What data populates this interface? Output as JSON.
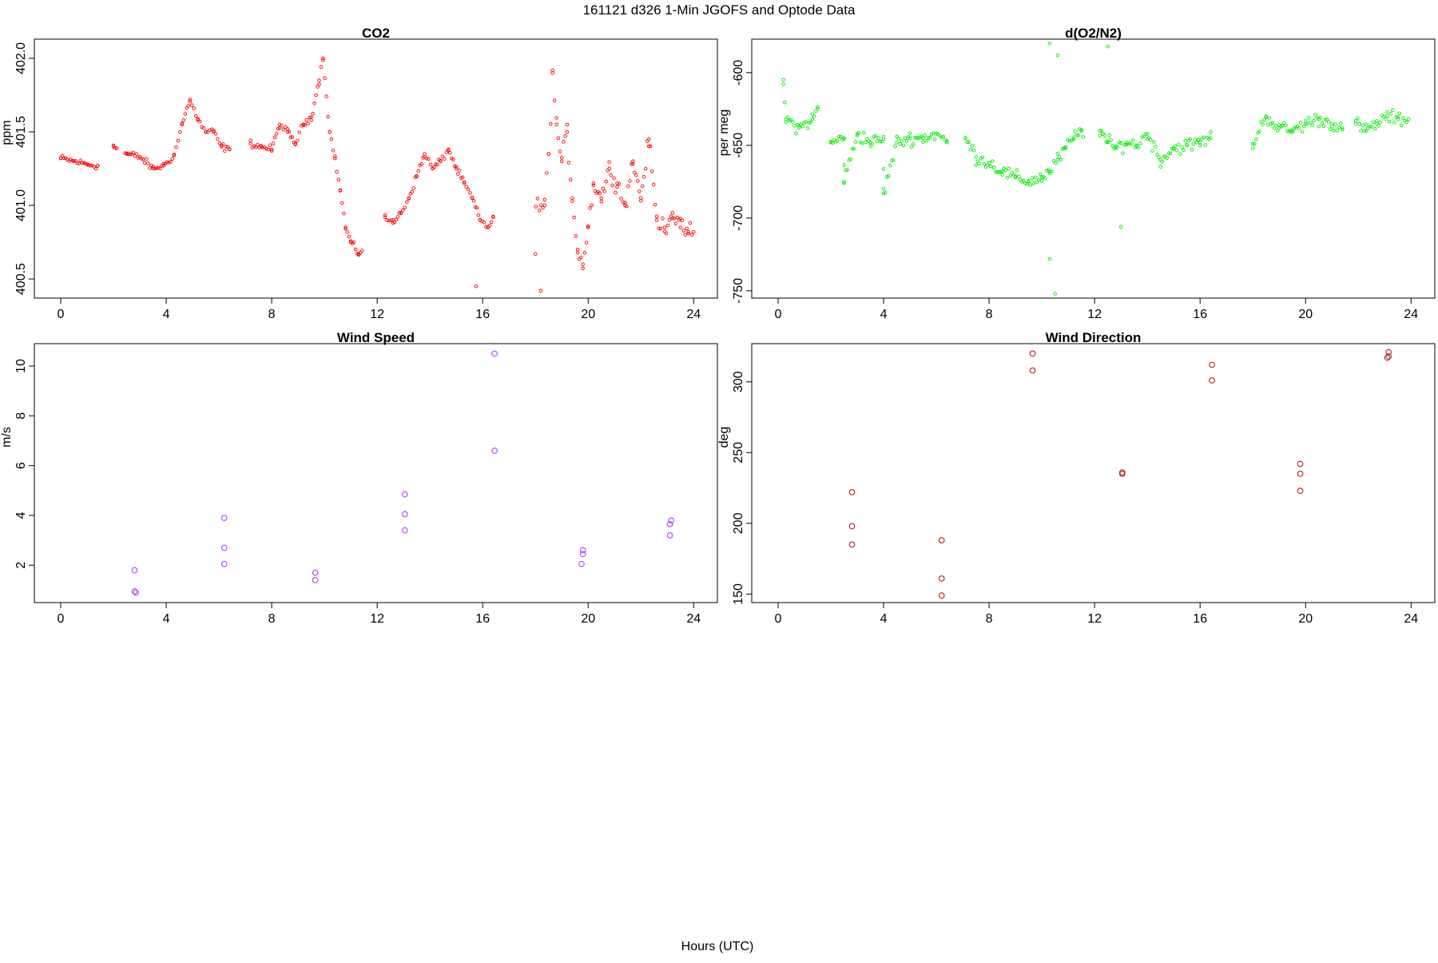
{
  "figure": {
    "title": "161121   d326   1-Min  JGOFS and Optode Data",
    "xlabel": "Hours (UTC)"
  },
  "chart_data": [
    {
      "type": "scatter",
      "title": "CO2",
      "xlabel": "",
      "ylabel": "ppm",
      "xlim": [
        -1,
        24.9
      ],
      "ylim": [
        400.37,
        402.13
      ],
      "xticks": [
        "0",
        "4",
        "8",
        "12",
        "16",
        "20",
        "24"
      ],
      "xtick_values": [
        0,
        4,
        8,
        12,
        16,
        20,
        24
      ],
      "yticks": [
        "400.5",
        "401.0",
        "401.5",
        "402.0"
      ],
      "ytick_values": [
        400.5,
        401.0,
        401.5,
        402.0
      ],
      "marker_size": 1.8,
      "color": "#ff0000",
      "gaps": [
        [
          1.45,
          1.95
        ],
        [
          2.15,
          2.4
        ],
        [
          6.45,
          7.15
        ],
        [
          11.45,
          12.25
        ],
        [
          16.45,
          18.0
        ]
      ],
      "series": [
        {
          "points": [
            {
              "x": 0.0,
              "y": 401.32
            },
            {
              "x": 0.5,
              "y": 401.3
            },
            {
              "x": 1.0,
              "y": 401.28
            },
            {
              "x": 1.4,
              "y": 401.27
            },
            {
              "x": 2.0,
              "y": 401.4
            },
            {
              "x": 2.5,
              "y": 401.35
            },
            {
              "x": 3.0,
              "y": 401.33
            },
            {
              "x": 3.5,
              "y": 401.25
            },
            {
              "x": 3.9,
              "y": 401.27
            },
            {
              "x": 4.3,
              "y": 401.34
            },
            {
              "x": 4.6,
              "y": 401.55
            },
            {
              "x": 4.9,
              "y": 401.72
            },
            {
              "x": 5.2,
              "y": 401.58
            },
            {
              "x": 5.5,
              "y": 401.5
            },
            {
              "x": 5.8,
              "y": 401.5
            },
            {
              "x": 6.1,
              "y": 401.4
            },
            {
              "x": 6.4,
              "y": 401.38
            },
            {
              "x": 7.2,
              "y": 401.42
            },
            {
              "x": 7.6,
              "y": 401.4
            },
            {
              "x": 8.0,
              "y": 401.38
            },
            {
              "x": 8.3,
              "y": 401.55
            },
            {
              "x": 8.6,
              "y": 401.5
            },
            {
              "x": 8.9,
              "y": 401.42
            },
            {
              "x": 9.2,
              "y": 401.55
            },
            {
              "x": 9.5,
              "y": 401.6
            },
            {
              "x": 9.8,
              "y": 401.85
            },
            {
              "x": 9.95,
              "y": 402.0
            },
            {
              "x": 10.2,
              "y": 401.5
            },
            {
              "x": 10.4,
              "y": 401.32
            },
            {
              "x": 10.6,
              "y": 401.1
            },
            {
              "x": 10.8,
              "y": 400.85
            },
            {
              "x": 11.0,
              "y": 400.75
            },
            {
              "x": 11.3,
              "y": 400.67
            },
            {
              "x": 12.3,
              "y": 400.92
            },
            {
              "x": 12.6,
              "y": 400.88
            },
            {
              "x": 12.9,
              "y": 400.95
            },
            {
              "x": 13.2,
              "y": 401.05
            },
            {
              "x": 13.5,
              "y": 401.2
            },
            {
              "x": 13.8,
              "y": 401.35
            },
            {
              "x": 14.1,
              "y": 401.25
            },
            {
              "x": 14.4,
              "y": 401.3
            },
            {
              "x": 14.7,
              "y": 401.38
            },
            {
              "x": 15.0,
              "y": 401.25
            },
            {
              "x": 15.3,
              "y": 401.15
            },
            {
              "x": 15.6,
              "y": 401.05
            },
            {
              "x": 15.9,
              "y": 400.9
            },
            {
              "x": 16.2,
              "y": 400.85
            },
            {
              "x": 16.4,
              "y": 400.92
            },
            {
              "x": 15.75,
              "y": 400.45
            },
            {
              "x": 18.0,
              "y": 400.67
            },
            {
              "x": 18.2,
              "y": 400.42
            },
            {
              "x": 18.35,
              "y": 401.0
            },
            {
              "x": 18.5,
              "y": 401.35
            },
            {
              "x": 18.65,
              "y": 401.9
            },
            {
              "x": 18.8,
              "y": 401.55
            },
            {
              "x": 19.0,
              "y": 401.3
            },
            {
              "x": 19.2,
              "y": 401.5
            },
            {
              "x": 19.4,
              "y": 401.05
            },
            {
              "x": 19.6,
              "y": 400.7
            },
            {
              "x": 19.8,
              "y": 400.6
            },
            {
              "x": 20.0,
              "y": 400.85
            },
            {
              "x": 20.2,
              "y": 401.15
            },
            {
              "x": 20.5,
              "y": 401.05
            },
            {
              "x": 20.8,
              "y": 401.25
            },
            {
              "x": 21.1,
              "y": 401.15
            },
            {
              "x": 21.4,
              "y": 401.0
            },
            {
              "x": 21.7,
              "y": 401.3
            },
            {
              "x": 22.0,
              "y": 401.05
            },
            {
              "x": 22.3,
              "y": 401.45
            },
            {
              "x": 22.6,
              "y": 400.9
            },
            {
              "x": 22.9,
              "y": 400.85
            },
            {
              "x": 23.2,
              "y": 400.95
            },
            {
              "x": 23.5,
              "y": 400.85
            },
            {
              "x": 23.8,
              "y": 400.82
            },
            {
              "x": 24.0,
              "y": 400.82
            }
          ]
        }
      ]
    },
    {
      "type": "scatter",
      "title": "d(O2/N2)",
      "xlabel": "",
      "ylabel": "per meg",
      "xlim": [
        -1,
        24.9
      ],
      "ylim": [
        -755,
        -577
      ],
      "xticks": [
        "0",
        "4",
        "8",
        "12",
        "16",
        "20",
        "24"
      ],
      "xtick_values": [
        0,
        4,
        8,
        12,
        16,
        20,
        24
      ],
      "yticks": [
        "-750",
        "-700",
        "-650",
        "-600"
      ],
      "ytick_values": [
        -750,
        -700,
        -650,
        -600
      ],
      "marker_size": 1.8,
      "color": "#00ee00",
      "gaps": [
        [
          1.5,
          1.95
        ],
        [
          6.45,
          7.1
        ],
        [
          11.6,
          12.2
        ],
        [
          16.45,
          18.0
        ],
        [
          21.4,
          21.9
        ]
      ],
      "series": [
        {
          "points": [
            {
              "x": 0.2,
              "y": -608
            },
            {
              "x": 0.3,
              "y": -632
            },
            {
              "x": 0.8,
              "y": -638
            },
            {
              "x": 1.3,
              "y": -632
            },
            {
              "x": 1.5,
              "y": -625
            },
            {
              "x": 2.0,
              "y": -648
            },
            {
              "x": 2.5,
              "y": -645
            },
            {
              "x": 3.0,
              "y": -642
            },
            {
              "x": 3.5,
              "y": -648
            },
            {
              "x": 4.0,
              "y": -646
            },
            {
              "x": 4.5,
              "y": -648
            },
            {
              "x": 5.0,
              "y": -645
            },
            {
              "x": 5.5,
              "y": -645
            },
            {
              "x": 6.0,
              "y": -642
            },
            {
              "x": 6.4,
              "y": -648
            },
            {
              "x": 7.1,
              "y": -645
            },
            {
              "x": 7.5,
              "y": -658
            },
            {
              "x": 8.0,
              "y": -662
            },
            {
              "x": 8.5,
              "y": -668
            },
            {
              "x": 9.0,
              "y": -672
            },
            {
              "x": 9.5,
              "y": -675
            },
            {
              "x": 10.0,
              "y": -672
            },
            {
              "x": 10.3,
              "y": -668
            },
            {
              "x": 10.6,
              "y": -660
            },
            {
              "x": 10.9,
              "y": -652
            },
            {
              "x": 11.2,
              "y": -645
            },
            {
              "x": 11.5,
              "y": -640
            },
            {
              "x": 12.2,
              "y": -640
            },
            {
              "x": 12.5,
              "y": -648
            },
            {
              "x": 12.8,
              "y": -652
            },
            {
              "x": 13.2,
              "y": -648
            },
            {
              "x": 13.6,
              "y": -650
            },
            {
              "x": 14.0,
              "y": -642
            },
            {
              "x": 14.5,
              "y": -660
            },
            {
              "x": 15.0,
              "y": -652
            },
            {
              "x": 15.5,
              "y": -650
            },
            {
              "x": 16.0,
              "y": -648
            },
            {
              "x": 16.4,
              "y": -645
            },
            {
              "x": 18.0,
              "y": -649
            },
            {
              "x": 18.5,
              "y": -630
            },
            {
              "x": 19.0,
              "y": -638
            },
            {
              "x": 19.5,
              "y": -640
            },
            {
              "x": 20.0,
              "y": -635
            },
            {
              "x": 20.5,
              "y": -632
            },
            {
              "x": 21.0,
              "y": -635
            },
            {
              "x": 21.4,
              "y": -638
            },
            {
              "x": 21.9,
              "y": -635
            },
            {
              "x": 22.3,
              "y": -640
            },
            {
              "x": 22.7,
              "y": -635
            },
            {
              "x": 23.1,
              "y": -630
            },
            {
              "x": 23.5,
              "y": -632
            },
            {
              "x": 23.9,
              "y": -632
            },
            {
              "x": 10.3,
              "y": -580
            },
            {
              "x": 10.3,
              "y": -728
            },
            {
              "x": 10.5,
              "y": -752
            },
            {
              "x": 10.6,
              "y": -588
            },
            {
              "x": 12.5,
              "y": -582
            },
            {
              "x": 13.0,
              "y": -706
            },
            {
              "x": 4.0,
              "y": -683
            },
            {
              "x": 2.5,
              "y": -675
            }
          ]
        }
      ]
    },
    {
      "type": "scatter",
      "title": "Wind Speed",
      "xlabel": "",
      "ylabel": "m/s",
      "xlim": [
        -1,
        24.9
      ],
      "ylim": [
        0.5,
        10.9
      ],
      "xticks": [
        "0",
        "4",
        "8",
        "12",
        "16",
        "20",
        "24"
      ],
      "xtick_values": [
        0,
        4,
        8,
        12,
        16,
        20,
        24
      ],
      "yticks": [
        "2",
        "4",
        "6",
        "8",
        "10"
      ],
      "ytick_values": [
        2,
        4,
        6,
        8,
        10
      ],
      "marker_size": 3.3,
      "color": "#b040ff",
      "series": [
        {
          "points": [
            {
              "x": 2.8,
              "y": 1.8
            },
            {
              "x": 2.8,
              "y": 0.95
            },
            {
              "x": 2.85,
              "y": 0.9
            },
            {
              "x": 6.2,
              "y": 3.9
            },
            {
              "x": 6.2,
              "y": 2.7
            },
            {
              "x": 6.2,
              "y": 2.05
            },
            {
              "x": 9.65,
              "y": 1.7
            },
            {
              "x": 9.65,
              "y": 1.4
            },
            {
              "x": 13.05,
              "y": 4.85
            },
            {
              "x": 13.05,
              "y": 4.05
            },
            {
              "x": 13.05,
              "y": 3.4
            },
            {
              "x": 16.45,
              "y": 10.5
            },
            {
              "x": 16.45,
              "y": 6.6
            },
            {
              "x": 19.8,
              "y": 2.6
            },
            {
              "x": 19.8,
              "y": 2.45
            },
            {
              "x": 19.75,
              "y": 2.05
            },
            {
              "x": 23.15,
              "y": 3.8
            },
            {
              "x": 23.1,
              "y": 3.65
            },
            {
              "x": 23.1,
              "y": 3.2
            }
          ]
        }
      ]
    },
    {
      "type": "scatter",
      "title": "Wind Direction",
      "xlabel": "",
      "ylabel": "deg",
      "xlim": [
        -1,
        24.9
      ],
      "ylim": [
        144,
        327
      ],
      "xticks": [
        "0",
        "4",
        "8",
        "12",
        "16",
        "20",
        "24"
      ],
      "xtick_values": [
        0,
        4,
        8,
        12,
        16,
        20,
        24
      ],
      "yticks": [
        "150",
        "200",
        "250",
        "300"
      ],
      "ytick_values": [
        150,
        200,
        250,
        300
      ],
      "marker_size": 3.3,
      "color": "#b22222",
      "series": [
        {
          "points": [
            {
              "x": 2.8,
              "y": 222
            },
            {
              "x": 2.8,
              "y": 198
            },
            {
              "x": 2.8,
              "y": 185
            },
            {
              "x": 6.2,
              "y": 188
            },
            {
              "x": 6.2,
              "y": 161
            },
            {
              "x": 6.2,
              "y": 149
            },
            {
              "x": 9.65,
              "y": 320
            },
            {
              "x": 9.65,
              "y": 308
            },
            {
              "x": 13.05,
              "y": 236
            },
            {
              "x": 13.05,
              "y": 235
            },
            {
              "x": 16.45,
              "y": 312
            },
            {
              "x": 16.45,
              "y": 301
            },
            {
              "x": 19.8,
              "y": 242
            },
            {
              "x": 19.8,
              "y": 235
            },
            {
              "x": 19.8,
              "y": 223
            },
            {
              "x": 23.15,
              "y": 321
            },
            {
              "x": 23.15,
              "y": 318
            },
            {
              "x": 23.1,
              "y": 317
            }
          ]
        }
      ]
    }
  ]
}
